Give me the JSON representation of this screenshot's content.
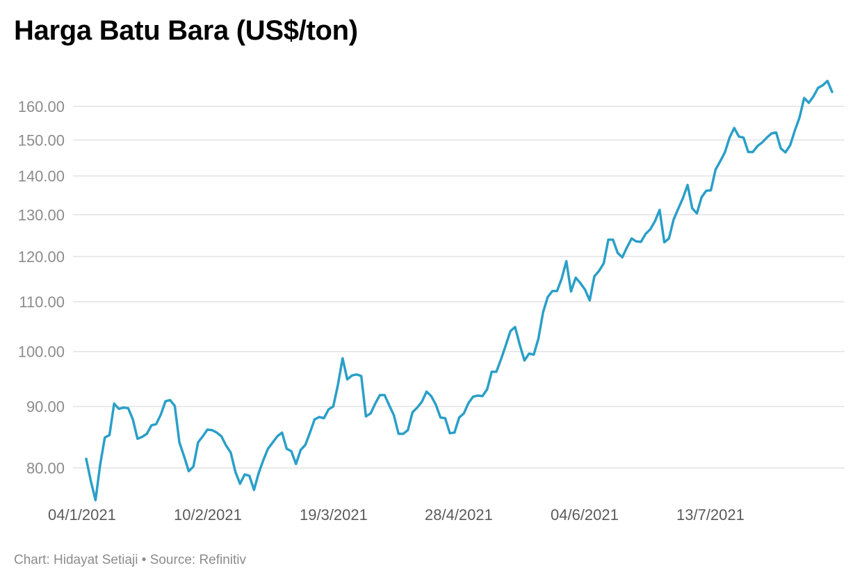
{
  "title": "Harga Batu Bara (US$/ton)",
  "footer": {
    "credit": "Chart: Hidayat Setiaji",
    "separator": "•",
    "source": "Source: Refinitiv"
  },
  "colors": {
    "line": "#2a9fc8",
    "grid": "#e2e2e2",
    "ytick": "#8c8c8c",
    "xtick": "#5a5a5a"
  },
  "chart_data": {
    "type": "line",
    "title": "Harga Batu Bara (US$/ton)",
    "xlabel": "",
    "ylabel": "",
    "y_scale": "log",
    "grid": true,
    "ylim": [
      74.5,
      168
    ],
    "yticks": [
      80,
      90,
      100,
      110,
      120,
      130,
      140,
      150,
      160
    ],
    "ytick_labels": [
      "80.00",
      "90.00",
      "100.00",
      "110.00",
      "120.00",
      "130.00",
      "140.00",
      "150.00",
      "160.00"
    ],
    "xticks": [
      "04/1/2021",
      "10/2/2021",
      "19/3/2021",
      "28/4/2021",
      "04/6/2021",
      "13/7/2021"
    ],
    "series": [
      {
        "values": [
          81.4,
          78.0,
          75.2,
          80.5,
          84.8,
          85.2,
          90.5,
          89.6,
          89.8,
          89.7,
          87.8,
          84.6,
          84.9,
          85.4,
          86.8,
          87.0,
          88.6,
          90.9,
          91.1,
          90.1,
          84.0,
          81.8,
          79.5,
          80.2,
          84.0,
          85.0,
          86.1,
          86.0,
          85.6,
          85.0,
          83.5,
          82.4,
          79.4,
          77.6,
          79.0,
          78.8,
          76.7,
          79.2,
          81.2,
          83.0,
          84.0,
          85.0,
          85.6,
          83.0,
          82.6,
          80.6,
          82.8,
          83.6,
          85.6,
          87.8,
          88.2,
          88.0,
          89.5,
          90.0,
          93.8,
          98.7,
          94.8,
          95.5,
          95.7,
          95.4,
          88.3,
          88.8,
          90.5,
          92.0,
          92.0,
          90.2,
          88.5,
          85.4,
          85.4,
          86.0,
          89.0,
          89.8,
          90.8,
          92.6,
          91.8,
          90.3,
          88.1,
          88.0,
          85.5,
          85.6,
          88.1,
          88.8,
          90.6,
          91.7,
          91.9,
          91.8,
          93.0,
          96.2,
          96.2,
          98.6,
          101.2,
          104.0,
          104.8,
          101.3,
          98.3,
          99.6,
          99.4,
          102.5,
          107.8,
          111.0,
          112.3,
          112.3,
          115.0,
          118.9,
          112.2,
          115.2,
          114.0,
          112.6,
          110.3,
          115.5,
          116.7,
          118.4,
          123.9,
          123.9,
          120.8,
          119.8,
          122.1,
          124.2,
          123.5,
          123.4,
          125.3,
          126.4,
          128.4,
          131.2,
          123.3,
          124.2,
          128.8,
          131.5,
          134.2,
          137.6,
          131.6,
          130.3,
          134.4,
          136.1,
          136.2,
          141.7,
          144.0,
          146.5,
          150.7,
          153.5,
          151.0,
          150.7,
          146.6,
          146.6,
          148.3,
          149.3,
          150.7,
          151.9,
          152.2,
          147.6,
          146.5,
          148.5,
          152.7,
          156.6,
          162.6,
          161.1,
          163.1,
          165.8,
          166.6,
          168.0,
          164.5
        ]
      }
    ]
  }
}
